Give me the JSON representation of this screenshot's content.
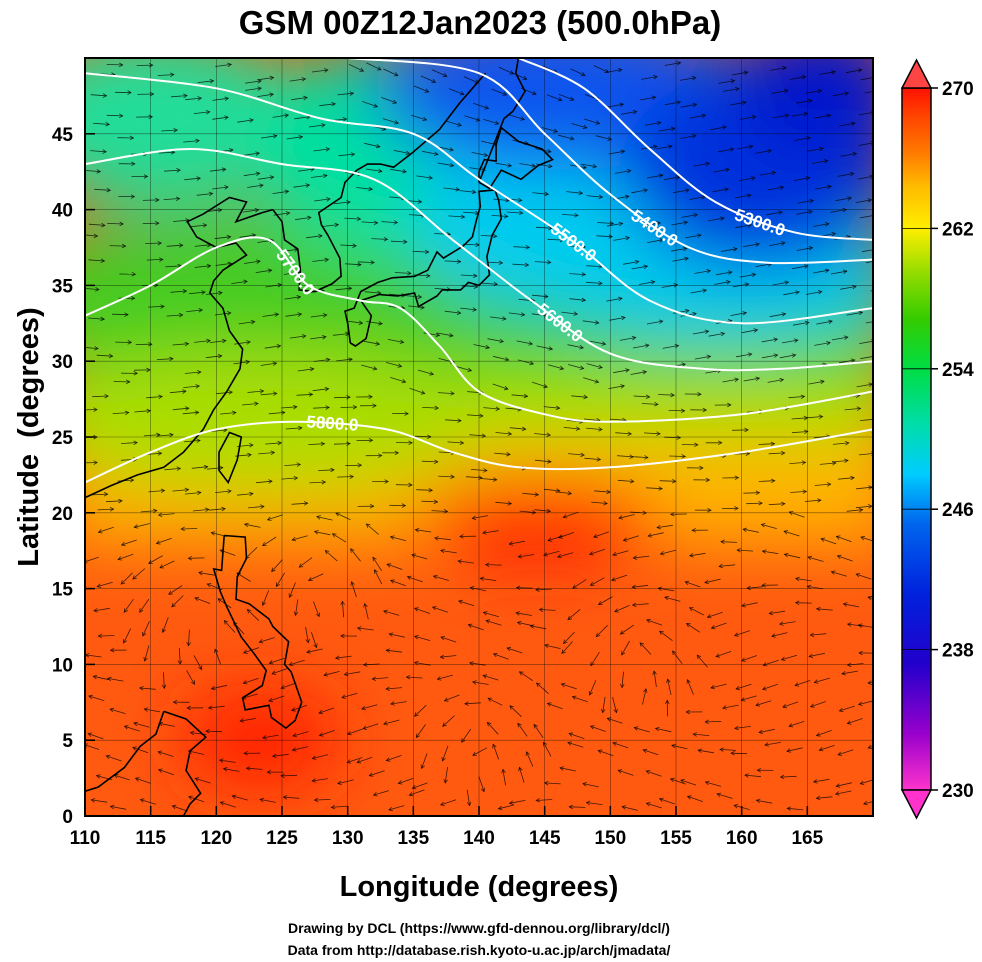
{
  "title": "GSM 00Z12Jan2023 (500.0hPa)",
  "chart_data": {
    "type": "heatmap",
    "title": "GSM 00Z12Jan2023 (500.0hPa)",
    "xlabel": "Longitude (degrees)",
    "ylabel": "Latitude  (degrees)",
    "xlim": [
      110,
      170
    ],
    "ylim": [
      0,
      50
    ],
    "x_ticks": [
      "110",
      "115",
      "120",
      "125",
      "130",
      "135",
      "140",
      "145",
      "150",
      "155",
      "160",
      "165"
    ],
    "y_ticks": [
      "0",
      "5",
      "10",
      "15",
      "20",
      "25",
      "30",
      "35",
      "40",
      "45"
    ],
    "grid": "on",
    "colorbar": {
      "placement": "right",
      "range": [
        230,
        270
      ],
      "ticks": [
        "230",
        "238",
        "246",
        "254",
        "262",
        "270"
      ],
      "colors": [
        "#ff33cc",
        "#9900cc",
        "#2200cc",
        "#0022dd",
        "#0066ee",
        "#00ccff",
        "#00ddaa",
        "#00dd44",
        "#33cc00",
        "#99dd00",
        "#ffee00",
        "#ffbb00",
        "#ff7700",
        "#ff4400",
        "#ff1100"
      ]
    },
    "contours": [
      {
        "label": "5300.0",
        "points": [
          [
            143,
            50
          ],
          [
            148,
            48
          ],
          [
            153,
            44
          ],
          [
            158,
            40.5
          ],
          [
            164,
            38.5
          ],
          [
            170,
            38
          ]
        ]
      },
      {
        "label": "5400.0",
        "points": [
          [
            130,
            50
          ],
          [
            140,
            49
          ],
          [
            145,
            45
          ],
          [
            150,
            41
          ],
          [
            156,
            37.5
          ],
          [
            162,
            36.5
          ],
          [
            170,
            36.7
          ]
        ]
      },
      {
        "label": "5500.0",
        "points": [
          [
            110,
            49
          ],
          [
            120,
            48
          ],
          [
            128,
            46
          ],
          [
            135,
            45
          ],
          [
            140,
            42
          ],
          [
            147,
            38
          ],
          [
            153,
            34
          ],
          [
            160,
            32.5
          ],
          [
            170,
            33.5
          ]
        ]
      },
      {
        "label": "5600.0",
        "points": [
          [
            110,
            43
          ],
          [
            118,
            44
          ],
          [
            125,
            43
          ],
          [
            132,
            42
          ],
          [
            138,
            38
          ],
          [
            144,
            34
          ],
          [
            150,
            30.5
          ],
          [
            157,
            29.5
          ],
          [
            163,
            29.5
          ],
          [
            170,
            30
          ]
        ]
      },
      {
        "label": "5700.0",
        "points": [
          [
            110,
            33
          ],
          [
            115,
            35
          ],
          [
            120,
            37.5
          ],
          [
            124,
            38
          ],
          [
            127,
            35
          ],
          [
            131,
            34
          ],
          [
            134,
            33.5
          ],
          [
            137,
            31
          ],
          [
            140,
            28
          ],
          [
            145,
            26.5
          ],
          [
            150,
            26
          ],
          [
            160,
            26.5
          ],
          [
            170,
            28
          ]
        ]
      },
      {
        "label": "5800.0",
        "points": [
          [
            110,
            22
          ],
          [
            115,
            24
          ],
          [
            120,
            25.5
          ],
          [
            126,
            26
          ],
          [
            133,
            25.5
          ],
          [
            138,
            24
          ],
          [
            143,
            23
          ],
          [
            150,
            23
          ],
          [
            160,
            24
          ],
          [
            170,
            25.5
          ]
        ]
      }
    ]
  },
  "credits": [
    "Drawing by DCL (https://www.gfd-dennou.org/library/dcl/)",
    "Data from http://database.rish.kyoto-u.ac.jp/arch/jmadata/"
  ]
}
